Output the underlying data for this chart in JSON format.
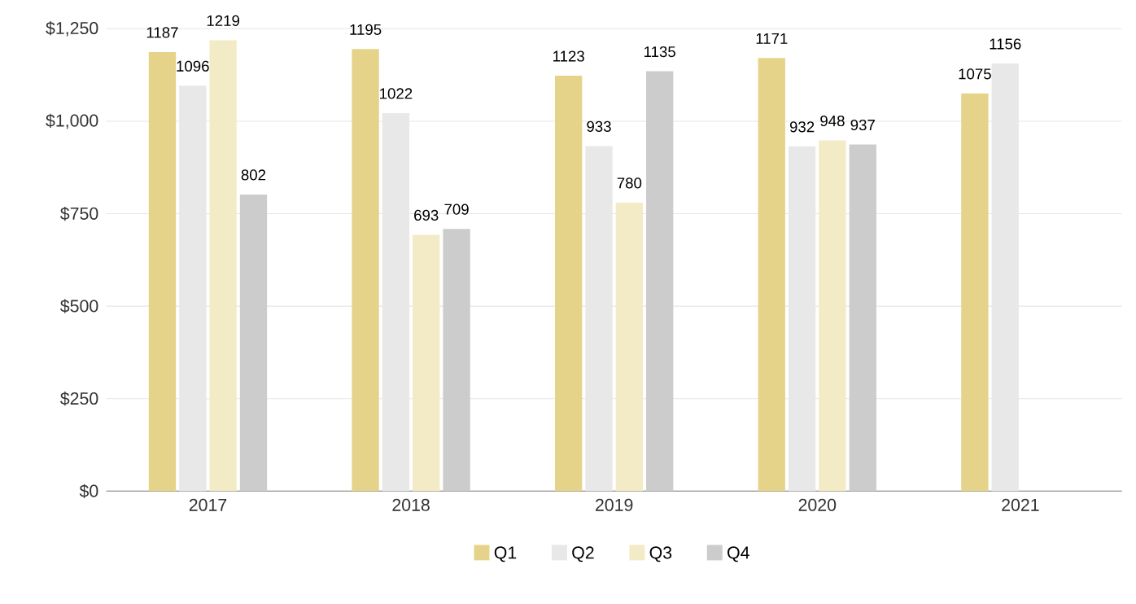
{
  "chart_data": {
    "type": "bar",
    "categories": [
      "2017",
      "2018",
      "2019",
      "2020",
      "2021"
    ],
    "series": [
      {
        "name": "Q1",
        "color": "#e6d38a",
        "values": [
          1187,
          1195,
          1123,
          1171,
          1075
        ]
      },
      {
        "name": "Q2",
        "color": "#e8e8e8",
        "values": [
          1096,
          1022,
          933,
          932,
          1156
        ]
      },
      {
        "name": "Q3",
        "color": "#f3ebc6",
        "values": [
          1219,
          693,
          780,
          948,
          null
        ]
      },
      {
        "name": "Q4",
        "color": "#cccccc",
        "values": [
          802,
          709,
          1135,
          937,
          null
        ]
      }
    ],
    "ylim": [
      0,
      1250
    ],
    "yticks": [
      {
        "value": 0,
        "label": "$0"
      },
      {
        "value": 250,
        "label": "$250"
      },
      {
        "value": 500,
        "label": "$500"
      },
      {
        "value": 750,
        "label": "$750"
      },
      {
        "value": 1000,
        "label": "$1,000"
      },
      {
        "value": 1250,
        "label": "$1,250"
      }
    ],
    "grid": "y",
    "legend": "bottom",
    "data_labels": true
  }
}
